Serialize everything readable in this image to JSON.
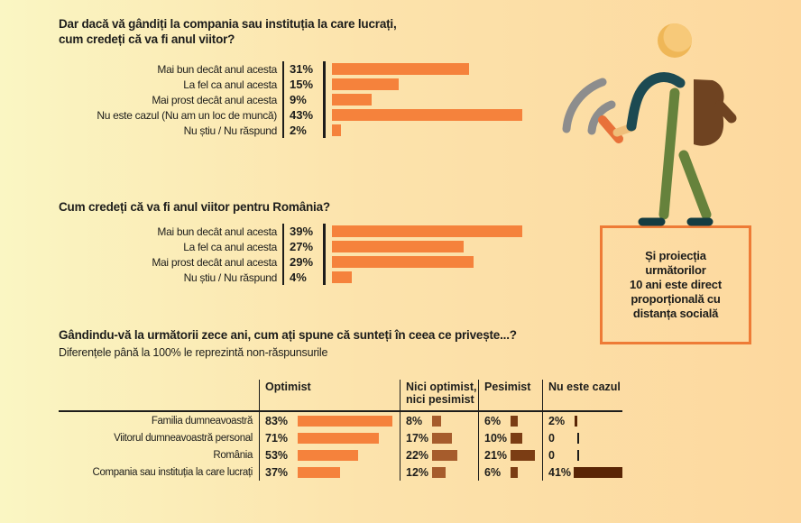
{
  "sections": {
    "company": {
      "title": "Dar dacă vă gândiți la compania sau instituția la care lucrați,\ncum credeți că va fi anul viitor?"
    },
    "romania": {
      "title": "Cum credeți că va fi anul viitor pentru România?"
    },
    "ten_years": {
      "title": "Gândindu-vă la următorii zece ani, cum ați spune că sunteți în ceea ce privește...?",
      "subtitle": "Diferențele până la 100% le reprezintă non-răspunsurile"
    }
  },
  "callout": {
    "text": "Și proiecția\nurmătorilor\n10 ani este direct\nproporțională cu\ndistanța socială",
    "border_color": "#EE7B36"
  },
  "illustration": {
    "name": "walking-person-with-phone-wifi-and-backpack",
    "colors": {
      "head": "#EFB757",
      "head_highlight": "#F7C979",
      "arm_feet_teal": "#1C4A52",
      "feet": "#143C42",
      "legs_green": "#66823C",
      "backpack_brown": "#6F4321",
      "hand_tan": "#EFBE7A",
      "phone_orange": "#E8713A",
      "wifi_gray": "#8D8D8D"
    }
  },
  "colors": {
    "text": "#1D1D1B",
    "bar_orange": "#F5823C",
    "bar_medium_brown": "#A65C2C",
    "bar_dark_brown": "#7B3D14",
    "bar_darkest_brown": "#5A2505",
    "background_left": "#FAF6C3",
    "background_right": "#FDD89E"
  },
  "chart_data": [
    {
      "type": "bar",
      "orientation": "horizontal",
      "title": "Dar dacă vă gândiți la compania sau instituția la care lucrați, cum credeți că va fi anul viitor?",
      "categories": [
        "Mai bun decât anul acesta",
        "La fel ca anul acesta",
        "Mai prost decât anul acesta",
        "Nu este cazul (Nu am un loc de muncă)",
        "Nu știu / Nu răspund"
      ],
      "values": [
        31,
        15,
        9,
        43,
        2
      ],
      "display": [
        "31%",
        "15%",
        "9%",
        "43%",
        "2%"
      ],
      "unit": "%",
      "bar_color": "#F5823C",
      "xlim": [
        0,
        43
      ]
    },
    {
      "type": "bar",
      "orientation": "horizontal",
      "title": "Cum credeți că va fi anul viitor pentru România?",
      "categories": [
        "Mai bun decât anul acesta",
        "La fel ca anul acesta",
        "Mai prost decât anul acesta",
        "Nu știu / Nu răspund"
      ],
      "values": [
        39,
        27,
        29,
        4
      ],
      "display": [
        "39%",
        "27%",
        "29%",
        "4%"
      ],
      "unit": "%",
      "bar_color": "#F5823C",
      "xlim": [
        0,
        39
      ]
    },
    {
      "type": "bar",
      "orientation": "horizontal",
      "title": "Gândindu-vă la următorii zece ani, cum ați spune că sunteți în ceea ce privește...?",
      "subtitle": "Diferențele până la 100% le reprezintă non-răspunsurile",
      "categories": [
        "Familia dumneavoastră",
        "Viitorul dumneavoastră personal",
        "România",
        "Compania sau instituția la care lucrați"
      ],
      "series": [
        {
          "name": "Optimist",
          "values": [
            83,
            71,
            53,
            37
          ],
          "display": [
            "83%",
            "71%",
            "53%",
            "37%"
          ],
          "color": "#F5823C"
        },
        {
          "name": "Nici optimist, nici pesimist",
          "values": [
            8,
            17,
            22,
            12
          ],
          "display": [
            "8%",
            "17%",
            "22%",
            "12%"
          ],
          "color": "#A65C2C"
        },
        {
          "name": "Pesimist",
          "values": [
            6,
            10,
            21,
            6
          ],
          "display": [
            "6%",
            "10%",
            "21%",
            "6%"
          ],
          "color": "#7B3D14"
        },
        {
          "name": "Nu este cazul",
          "values": [
            2,
            0,
            0,
            41
          ],
          "display": [
            "2%",
            "0",
            "0",
            "41%"
          ],
          "color": "#5A2505"
        }
      ],
      "unit": "%"
    }
  ]
}
